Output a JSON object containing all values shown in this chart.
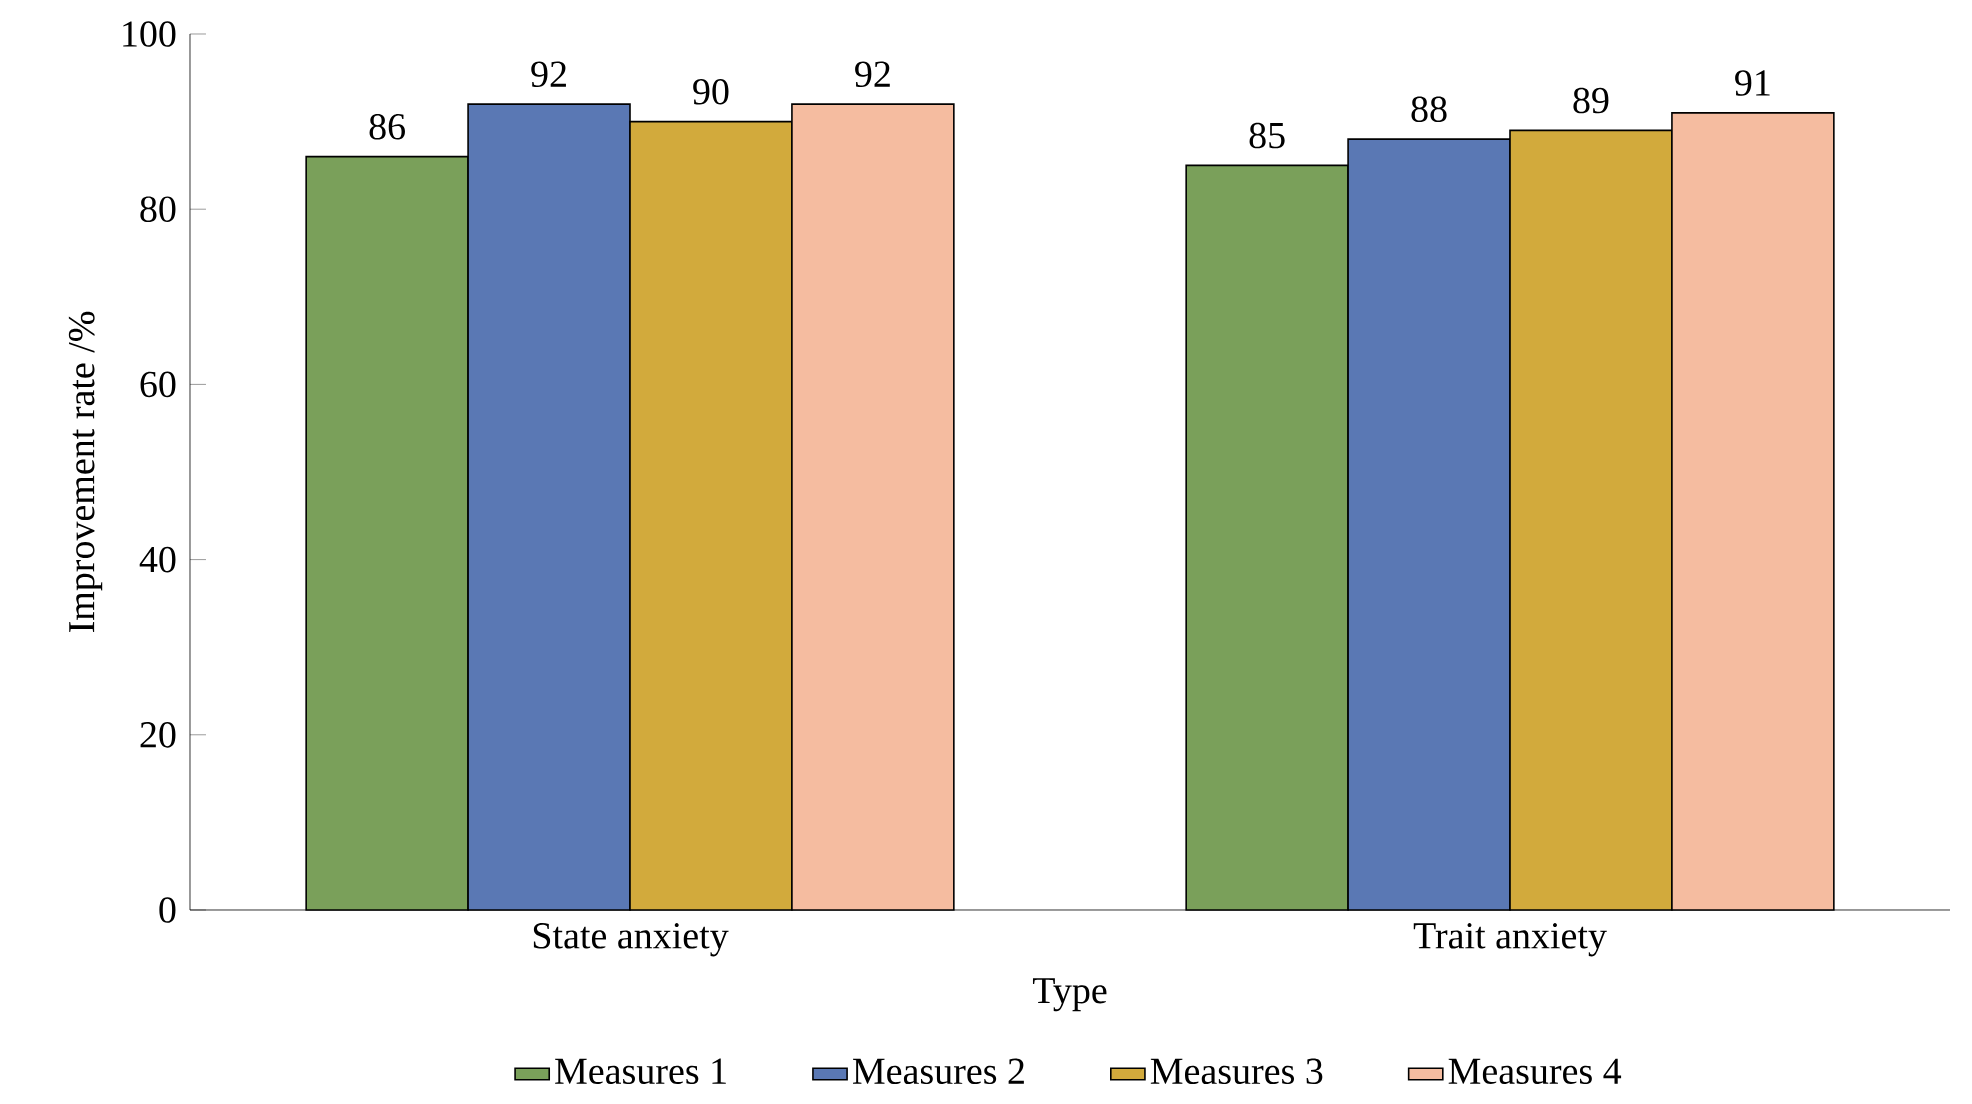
{
  "chart_data": {
    "type": "bar",
    "xlabel": "Type",
    "ylabel": "Improvement rate /%",
    "categories": [
      "State anxiety",
      "Trait anxiety"
    ],
    "series": [
      {
        "name": "Measures 1",
        "color": "#7aa05a",
        "values": [
          86,
          85
        ]
      },
      {
        "name": "Measures 2",
        "color": "#5a78b4",
        "values": [
          92,
          88
        ]
      },
      {
        "name": "Measures 3",
        "color": "#d2aa3c",
        "values": [
          90,
          89
        ]
      },
      {
        "name": "Measures 4",
        "color": "#f5bca0",
        "values": [
          92,
          91
        ]
      }
    ],
    "ylim": [
      0,
      100
    ],
    "yticks": [
      0,
      20,
      40,
      60,
      80,
      100
    ],
    "data_labels": true,
    "legend": "bottom",
    "grid": false
  }
}
